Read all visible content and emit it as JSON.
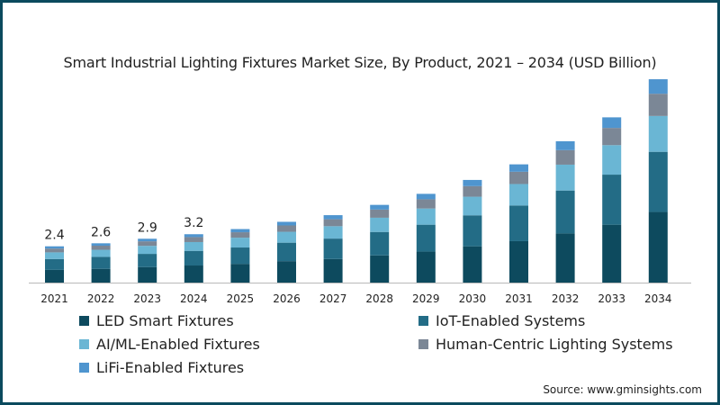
{
  "chart_data": {
    "type": "bar",
    "stacked": true,
    "title": "Smart Industrial Lighting Fixtures Market Size, By Product, 2021 – 2034 (USD Billion)",
    "categories": [
      "2021",
      "2022",
      "2023",
      "2024",
      "2025",
      "2026",
      "2027",
      "2028",
      "2029",
      "2030",
      "2031",
      "2032",
      "2033",
      "2034"
    ],
    "series": [
      {
        "name": "LED Smart Fixtures",
        "color": "#0d4a5e",
        "values": [
          0.84,
          0.91,
          1.02,
          1.13,
          1.24,
          1.42,
          1.56,
          1.8,
          2.05,
          2.4,
          2.74,
          3.25,
          3.83,
          4.67
        ]
      },
      {
        "name": "IoT-Enabled Systems",
        "color": "#236c86",
        "values": [
          0.72,
          0.79,
          0.88,
          0.97,
          1.08,
          1.22,
          1.35,
          1.55,
          1.78,
          2.05,
          2.36,
          2.84,
          3.31,
          3.98
        ]
      },
      {
        "name": "AI/ML-Enabled Fixtures",
        "color": "#6ab6d4",
        "values": [
          0.44,
          0.47,
          0.53,
          0.58,
          0.65,
          0.72,
          0.82,
          0.94,
          1.07,
          1.23,
          1.42,
          1.71,
          1.95,
          2.37
        ]
      },
      {
        "name": "Human-Centric Lighting Systems",
        "color": "#7b8796",
        "values": [
          0.25,
          0.27,
          0.3,
          0.33,
          0.36,
          0.42,
          0.46,
          0.54,
          0.61,
          0.7,
          0.81,
          0.96,
          1.14,
          1.47
        ]
      },
      {
        "name": "LiFi-Enabled Fixtures",
        "color": "#4f95cf",
        "values": [
          0.15,
          0.16,
          0.17,
          0.19,
          0.21,
          0.24,
          0.27,
          0.31,
          0.36,
          0.41,
          0.49,
          0.59,
          0.7,
          0.96
        ]
      }
    ],
    "data_labels": [
      "2.4",
      "2.6",
      "2.9",
      "3.2",
      null,
      null,
      null,
      null,
      null,
      null,
      null,
      null,
      null,
      null
    ],
    "ylim": [
      0,
      15
    ],
    "grid": false,
    "legend": "bottom"
  },
  "source_text": "Source: www.gminsights.com"
}
